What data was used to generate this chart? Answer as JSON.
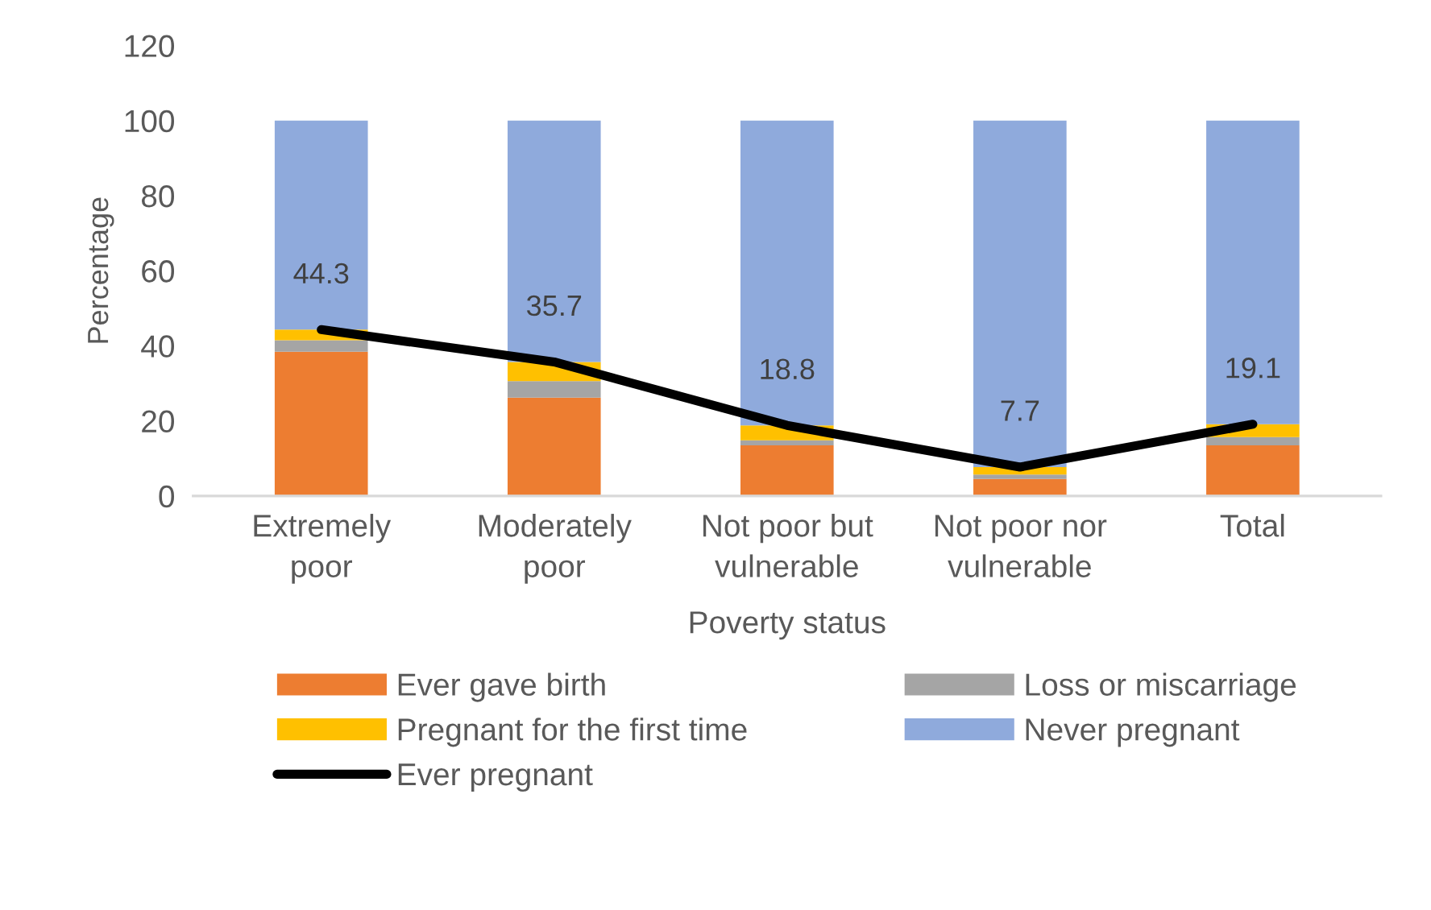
{
  "chart_data": {
    "type": "bar",
    "stacked": true,
    "xlabel": "Poverty status",
    "ylabel": "Percentage",
    "categories": [
      "Extremely poor",
      "Moderately poor",
      "Not poor but vulnerable",
      "Not poor nor vulnerable",
      "Total"
    ],
    "series": [
      {
        "name": "Ever gave birth",
        "color": "#ed7d31",
        "values": [
          38.4,
          26.2,
          13.5,
          4.5,
          13.5
        ]
      },
      {
        "name": "Loss or miscarriage",
        "color": "#a5a5a5",
        "values": [
          3.1,
          4.4,
          1.3,
          1.2,
          2.2
        ]
      },
      {
        "name": "Pregnant for the first time",
        "color": "#ffc000",
        "values": [
          2.8,
          5.1,
          4.0,
          2.0,
          3.4
        ]
      },
      {
        "name": "Never pregnant",
        "color": "#8faadc",
        "values": [
          55.7,
          64.3,
          81.2,
          92.3,
          80.9
        ]
      },
      {
        "name": "Ever pregnant",
        "type": "line",
        "color": "#000000",
        "values": [
          44.3,
          35.7,
          18.8,
          7.7,
          19.1
        ],
        "data_labels": true
      }
    ],
    "ylim": [
      0,
      120
    ],
    "yticks": [
      0,
      20,
      40,
      60,
      80,
      100,
      120
    ],
    "grid": false,
    "legend": "bottom"
  }
}
